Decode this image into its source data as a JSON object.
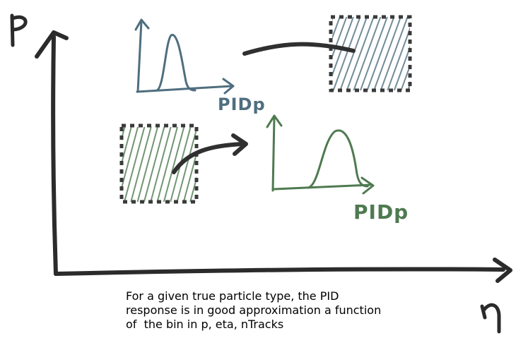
{
  "axes": {
    "y_label": "p",
    "x_label": "η"
  },
  "panels": {
    "top": {
      "pid_label": "PIDp"
    },
    "bottom": {
      "pid_label": "PIDp"
    }
  },
  "caption": {
    "line1": "For a given true particle type, the PID",
    "line2": "response is in good approximation a function",
    "line3": "of  the bin in p, eta, nTracks"
  },
  "colors": {
    "axis": "#2b2b2b",
    "blue": "#4f6e7f",
    "green": "#4e7a50",
    "arrow": "#303030"
  }
}
